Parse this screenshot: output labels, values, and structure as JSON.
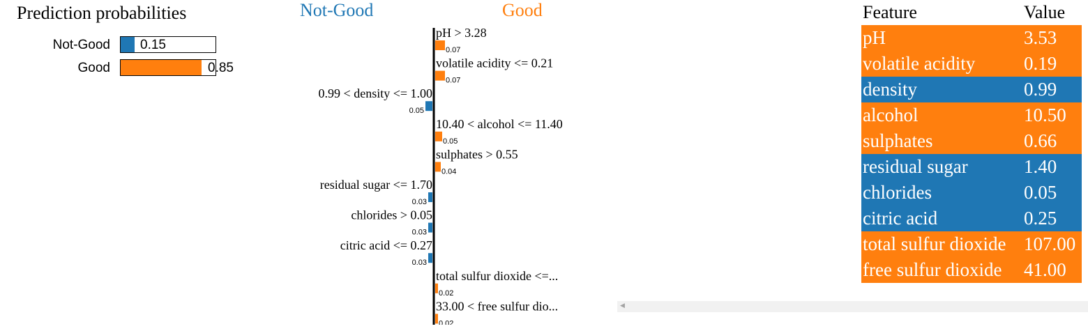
{
  "prediction": {
    "title": "Prediction probabilities",
    "classes": [
      {
        "label": "Not-Good",
        "value": 0.15,
        "display": "0.15",
        "color": "#1f77b4"
      },
      {
        "label": "Good",
        "value": 0.85,
        "display": "0.85",
        "color": "#ff7f0e"
      }
    ]
  },
  "explanation": {
    "left_class": "Not-Good",
    "right_class": "Good",
    "left_color": "#1f77b4",
    "right_color": "#ff7f0e"
  },
  "table": {
    "header_feature": "Feature",
    "header_value": "Value",
    "rows": [
      {
        "feature": "pH",
        "value": "3.53",
        "color": "#ff7f0e"
      },
      {
        "feature": "volatile acidity",
        "value": "0.19",
        "color": "#ff7f0e"
      },
      {
        "feature": "density",
        "value": "0.99",
        "color": "#1f77b4"
      },
      {
        "feature": "alcohol",
        "value": "10.50",
        "color": "#ff7f0e"
      },
      {
        "feature": "sulphates",
        "value": "0.66",
        "color": "#ff7f0e"
      },
      {
        "feature": "residual sugar",
        "value": "1.40",
        "color": "#1f77b4"
      },
      {
        "feature": "chlorides",
        "value": "0.05",
        "color": "#1f77b4"
      },
      {
        "feature": "citric acid",
        "value": "0.25",
        "color": "#1f77b4"
      },
      {
        "feature": "total sulfur dioxide",
        "value": "107.00",
        "color": "#ff7f0e"
      },
      {
        "feature": "free sulfur dioxide",
        "value": "41.00",
        "color": "#ff7f0e"
      }
    ]
  },
  "chart_data": {
    "type": "bar",
    "title": "",
    "orientation": "horizontal-diverging",
    "classes": [
      "Not-Good",
      "Good"
    ],
    "categories": [
      "pH > 3.28",
      "volatile acidity <= 0.21",
      "0.99 < density <= 1.00",
      "10.40 < alcohol <= 11.40",
      "sulphates > 0.55",
      "residual sugar <= 1.70",
      "chlorides > 0.05",
      "citric acid <= 0.27",
      "total sulfur dioxide <=...",
      "33.00 < free sulfur dio..."
    ],
    "values": [
      0.07,
      0.07,
      -0.05,
      0.05,
      0.04,
      -0.03,
      -0.03,
      -0.03,
      0.02,
      0.02
    ],
    "value_labels": [
      "0.07",
      "0.07",
      "0.05",
      "0.05",
      "0.04",
      "0.03",
      "0.03",
      "0.03",
      "0.02",
      "0.02"
    ],
    "negative_class": "Not-Good",
    "positive_class": "Good"
  }
}
